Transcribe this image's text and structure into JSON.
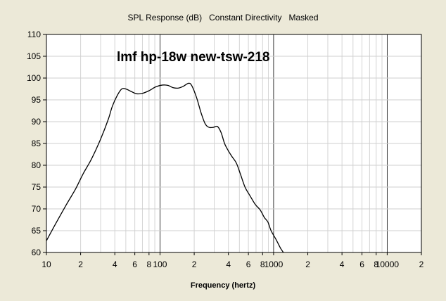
{
  "window": {
    "title": "SPL Response (dB)   Constant Directivity   Masked",
    "background_color": "#ece9d8"
  },
  "chart_data": {
    "type": "line",
    "title": "SPL Response (dB)   Constant Directivity   Masked",
    "annotation": "lmf hp-18w new-tsw-218",
    "xlabel": "Frequency (hertz)",
    "ylabel": "",
    "x_scale": "log",
    "xlim": [
      10,
      20000
    ],
    "ylim": [
      60,
      110
    ],
    "grid": true,
    "legend": "none",
    "y_ticks": [
      60,
      65,
      70,
      75,
      80,
      85,
      90,
      95,
      100,
      105,
      110
    ],
    "x_tick_labels": [
      {
        "x": 10,
        "label": "10"
      },
      {
        "x": 20,
        "label": "2"
      },
      {
        "x": 40,
        "label": "4"
      },
      {
        "x": 60,
        "label": "6"
      },
      {
        "x": 80,
        "label": "8"
      },
      {
        "x": 100,
        "label": "100"
      },
      {
        "x": 200,
        "label": "2"
      },
      {
        "x": 400,
        "label": "4"
      },
      {
        "x": 600,
        "label": "6"
      },
      {
        "x": 800,
        "label": "8"
      },
      {
        "x": 1000,
        "label": "1000"
      },
      {
        "x": 2000,
        "label": "2"
      },
      {
        "x": 4000,
        "label": "4"
      },
      {
        "x": 6000,
        "label": "6"
      },
      {
        "x": 8000,
        "label": "8"
      },
      {
        "x": 10000,
        "label": "10000"
      },
      {
        "x": 20000,
        "label": "2"
      }
    ],
    "series": [
      {
        "color": "#000000",
        "points": [
          [
            10,
            62.7
          ],
          [
            12,
            66.5
          ],
          [
            15,
            71
          ],
          [
            18,
            74.5
          ],
          [
            21,
            78
          ],
          [
            25,
            81.5
          ],
          [
            30,
            86
          ],
          [
            35,
            90.5
          ],
          [
            38,
            93.5
          ],
          [
            42,
            96
          ],
          [
            46,
            97.5
          ],
          [
            50,
            97.5
          ],
          [
            55,
            97
          ],
          [
            62,
            96.4
          ],
          [
            70,
            96.5
          ],
          [
            80,
            97.1
          ],
          [
            92,
            98
          ],
          [
            105,
            98.4
          ],
          [
            118,
            98.3
          ],
          [
            130,
            97.8
          ],
          [
            145,
            97.7
          ],
          [
            160,
            98.1
          ],
          [
            178,
            98.8
          ],
          [
            190,
            98.3
          ],
          [
            210,
            95.5
          ],
          [
            230,
            92
          ],
          [
            250,
            89.5
          ],
          [
            270,
            88.7
          ],
          [
            295,
            88.7
          ],
          [
            320,
            88.9
          ],
          [
            345,
            87.5
          ],
          [
            370,
            85
          ],
          [
            400,
            83.3
          ],
          [
            430,
            82
          ],
          [
            470,
            80.5
          ],
          [
            510,
            78
          ],
          [
            560,
            75
          ],
          [
            620,
            73
          ],
          [
            690,
            71
          ],
          [
            760,
            69.8
          ],
          [
            830,
            68
          ],
          [
            890,
            67
          ],
          [
            950,
            65
          ],
          [
            1050,
            63
          ],
          [
            1150,
            61
          ],
          [
            1220,
            60
          ]
        ]
      }
    ]
  }
}
